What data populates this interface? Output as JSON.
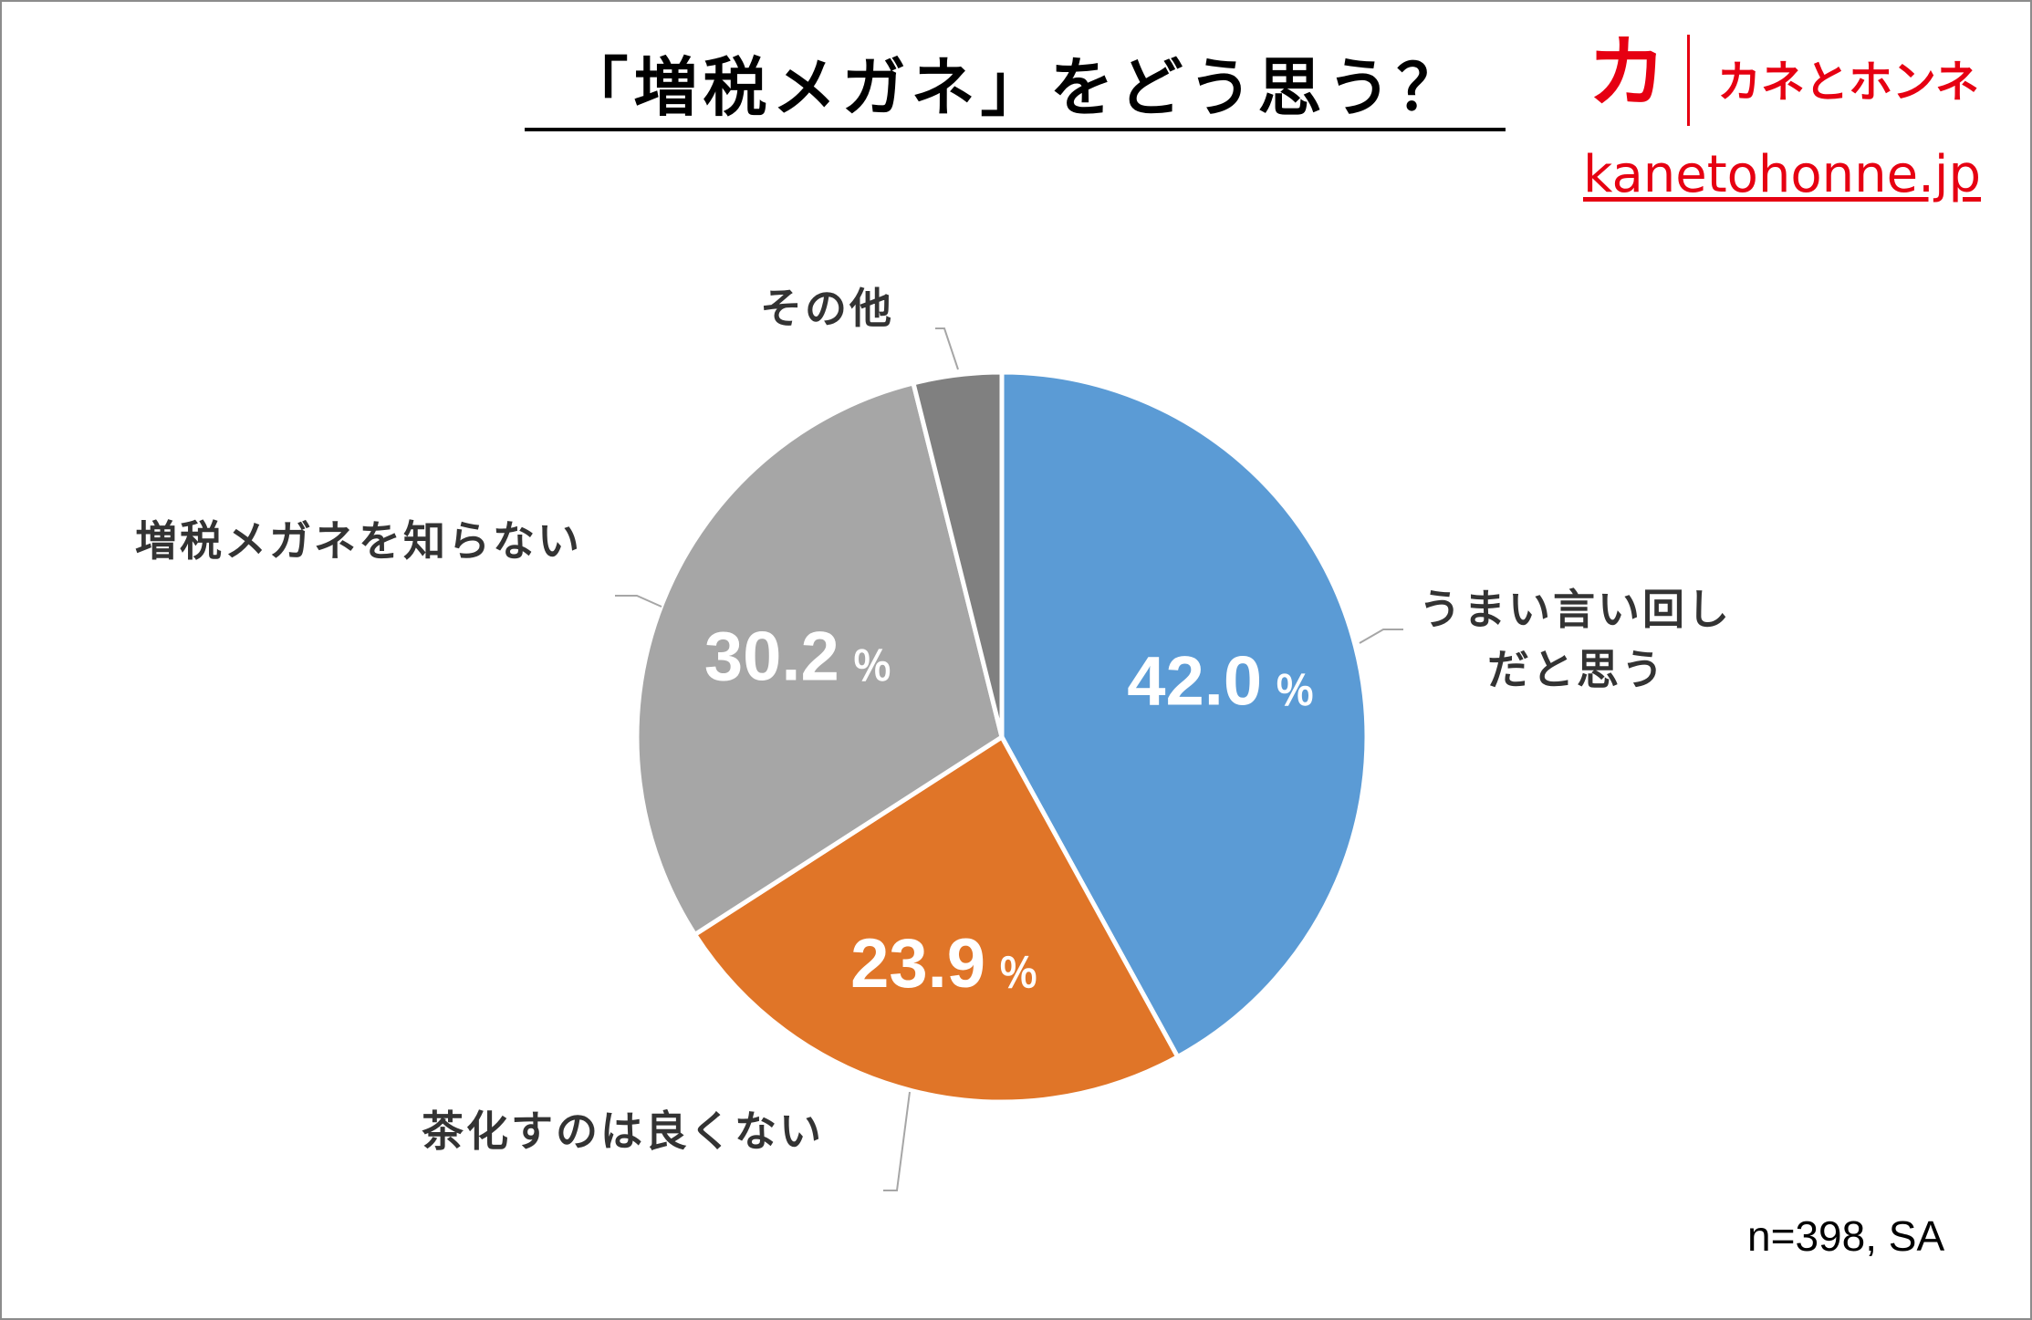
{
  "title": "「増税メガネ」をどう思う？",
  "brand": {
    "mark": "カ",
    "name": "カネとホンネ",
    "url": "kanetohonne.jp",
    "color": "#e60012"
  },
  "sample_note": "n=398, SA",
  "chart_data": {
    "type": "pie",
    "start_angle": "12 o'clock",
    "direction": "clockwise",
    "slices": [
      {
        "label": "うまい言い回しだと思う",
        "label_lines": [
          "うまい言い回し",
          "だと思う"
        ],
        "value": 42.0,
        "value_text": "42.0",
        "unit": "％",
        "color": "#5b9bd5"
      },
      {
        "label": "茶化すのは良くない",
        "label_lines": [
          "茶化すのは良くない"
        ],
        "value": 23.9,
        "value_text": "23.9",
        "unit": "％",
        "color": "#e07528"
      },
      {
        "label": "増税メガネを知らない",
        "label_lines": [
          "増税メガネを知らない"
        ],
        "value": 30.2,
        "value_text": "30.2",
        "unit": "％",
        "color": "#a6a6a6"
      },
      {
        "label": "その他",
        "label_lines": [
          "その他"
        ],
        "value": 3.9,
        "value_text": "",
        "unit": "",
        "color": "#808080"
      }
    ]
  }
}
